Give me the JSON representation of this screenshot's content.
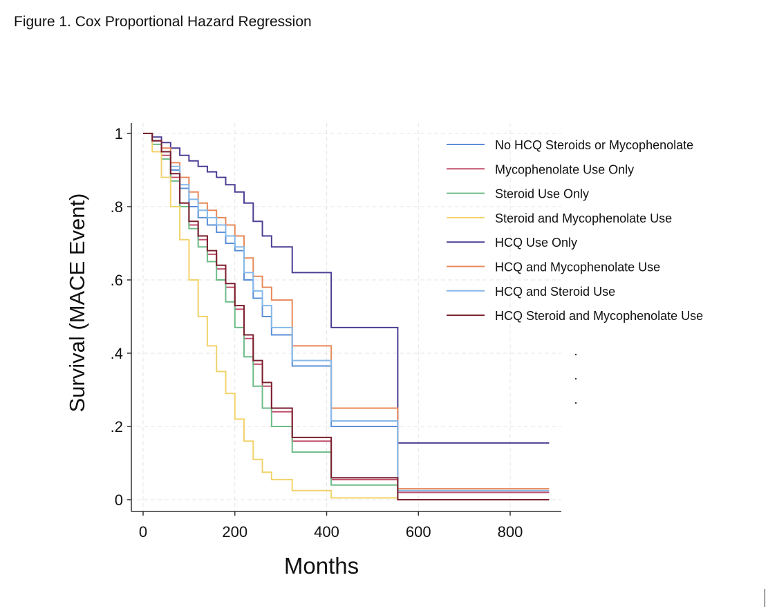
{
  "figure_title": "Figure 1. Cox Proportional Hazard Regression",
  "chart_data": {
    "type": "line",
    "step": true,
    "xlabel": "Months",
    "ylabel": "Survival (MACE Event)",
    "xlim": [
      0,
      880
    ],
    "ylim": [
      0,
      1
    ],
    "xticks": [
      0,
      200,
      400,
      600,
      800
    ],
    "yticks": [
      {
        "value": 0,
        "label": "0"
      },
      {
        "value": 0.2,
        "label": ".2"
      },
      {
        "value": 0.4,
        "label": ".4"
      },
      {
        "value": 0.6,
        "label": ".6"
      },
      {
        "value": 0.8,
        "label": ".8"
      },
      {
        "value": 1,
        "label": "1"
      }
    ],
    "grid": true,
    "legend_position": "top-right",
    "series": [
      {
        "name": "No HCQ Steroids or Mycophenolate",
        "color": "#5b8fd9",
        "x": [
          0,
          20,
          40,
          60,
          80,
          100,
          120,
          140,
          160,
          180,
          200,
          220,
          240,
          260,
          280,
          325,
          410,
          555,
          885
        ],
        "y": [
          1,
          0.98,
          0.95,
          0.9,
          0.85,
          0.8,
          0.77,
          0.75,
          0.73,
          0.7,
          0.68,
          0.6,
          0.55,
          0.5,
          0.45,
          0.365,
          0.2,
          0.02,
          0.02
        ]
      },
      {
        "name": "Mycophenolate Use Only",
        "color": "#c0506a",
        "x": [
          0,
          20,
          40,
          60,
          80,
          100,
          120,
          140,
          160,
          180,
          200,
          220,
          240,
          260,
          280,
          325,
          410,
          555,
          885
        ],
        "y": [
          1,
          0.98,
          0.94,
          0.88,
          0.8,
          0.75,
          0.71,
          0.67,
          0.63,
          0.58,
          0.52,
          0.44,
          0.37,
          0.31,
          0.24,
          0.16,
          0.055,
          0.02,
          0.02
        ]
      },
      {
        "name": "Steroid Use Only",
        "color": "#6dbb87",
        "x": [
          0,
          20,
          40,
          60,
          80,
          100,
          120,
          140,
          160,
          180,
          200,
          220,
          240,
          260,
          280,
          325,
          410,
          555,
          885
        ],
        "y": [
          1,
          0.97,
          0.93,
          0.87,
          0.8,
          0.74,
          0.69,
          0.65,
          0.6,
          0.54,
          0.47,
          0.39,
          0.31,
          0.25,
          0.2,
          0.13,
          0.04,
          0.0,
          0.0
        ]
      },
      {
        "name": "Steroid and Mycophenolate Use",
        "color": "#f2d36b",
        "x": [
          0,
          20,
          40,
          60,
          80,
          100,
          120,
          140,
          160,
          180,
          200,
          220,
          240,
          260,
          280,
          325,
          410,
          555,
          885
        ],
        "y": [
          1,
          0.95,
          0.88,
          0.8,
          0.71,
          0.6,
          0.5,
          0.42,
          0.35,
          0.29,
          0.22,
          0.16,
          0.11,
          0.075,
          0.055,
          0.025,
          0.005,
          0.0,
          0.0
        ]
      },
      {
        "name": "HCQ Use Only",
        "color": "#4e3d94",
        "x": [
          0,
          20,
          40,
          60,
          80,
          100,
          120,
          140,
          160,
          180,
          200,
          220,
          240,
          260,
          280,
          325,
          410,
          555,
          885
        ],
        "y": [
          1,
          0.99,
          0.975,
          0.96,
          0.94,
          0.925,
          0.91,
          0.895,
          0.88,
          0.86,
          0.84,
          0.81,
          0.76,
          0.72,
          0.69,
          0.62,
          0.47,
          0.155,
          0.155
        ]
      },
      {
        "name": "HCQ and Mycophenolate Use",
        "color": "#e8895a",
        "x": [
          0,
          20,
          40,
          60,
          80,
          100,
          120,
          140,
          160,
          180,
          200,
          220,
          240,
          260,
          280,
          325,
          410,
          555,
          885
        ],
        "y": [
          1,
          0.98,
          0.96,
          0.92,
          0.88,
          0.84,
          0.81,
          0.79,
          0.77,
          0.75,
          0.72,
          0.66,
          0.61,
          0.58,
          0.545,
          0.42,
          0.25,
          0.03,
          0.03
        ]
      },
      {
        "name": "HCQ and Steroid Use",
        "color": "#86b8e8",
        "x": [
          0,
          20,
          40,
          60,
          80,
          100,
          120,
          140,
          160,
          180,
          200,
          220,
          240,
          260,
          280,
          325,
          410,
          555,
          885
        ],
        "y": [
          1,
          0.98,
          0.95,
          0.91,
          0.86,
          0.82,
          0.79,
          0.77,
          0.75,
          0.72,
          0.69,
          0.62,
          0.57,
          0.53,
          0.47,
          0.38,
          0.215,
          0.025,
          0.025
        ]
      },
      {
        "name": "HCQ Steroid and Mycophenolate Use",
        "color": "#7a1f2e",
        "x": [
          0,
          20,
          40,
          60,
          80,
          100,
          120,
          140,
          160,
          180,
          200,
          220,
          240,
          260,
          280,
          325,
          410,
          555,
          885
        ],
        "y": [
          1,
          0.98,
          0.95,
          0.89,
          0.81,
          0.76,
          0.72,
          0.68,
          0.64,
          0.59,
          0.53,
          0.45,
          0.38,
          0.32,
          0.25,
          0.17,
          0.06,
          0.0,
          0.0
        ]
      }
    ]
  }
}
